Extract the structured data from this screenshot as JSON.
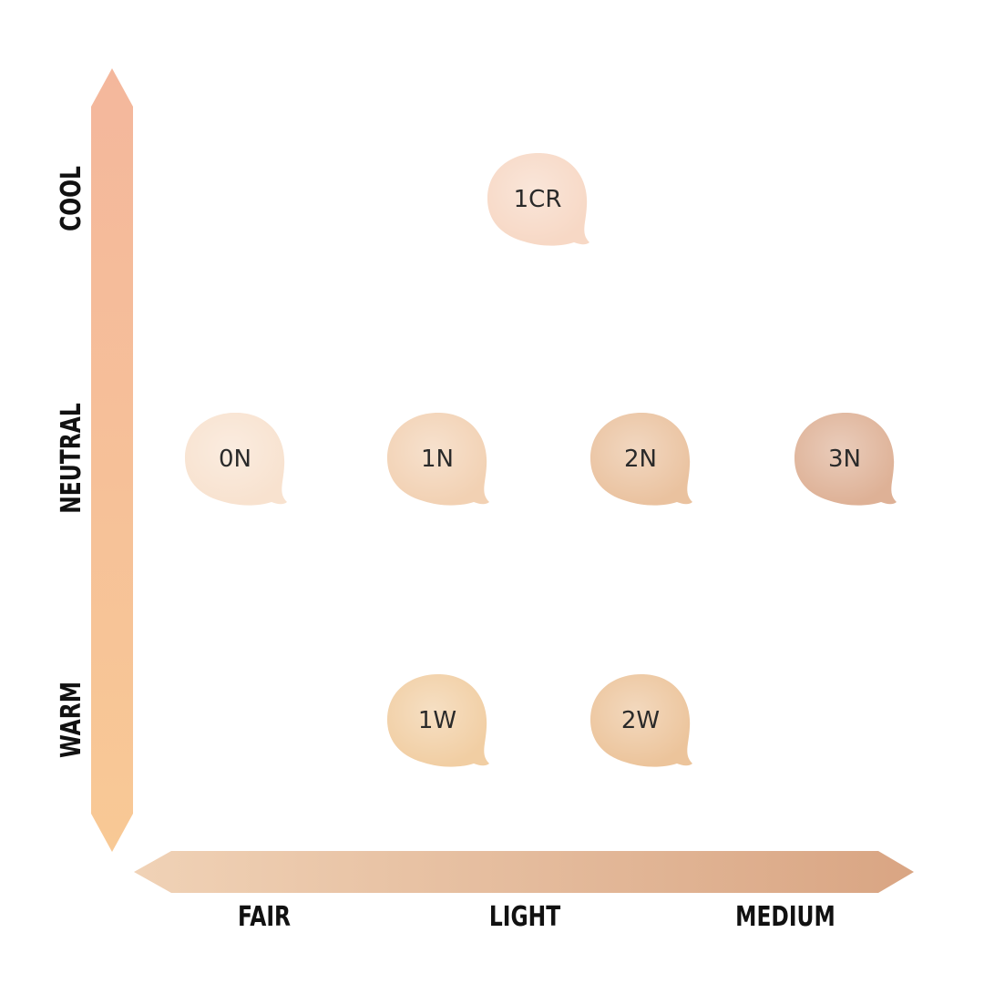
{
  "axes": {
    "vertical": {
      "labels": [
        "COOL",
        "NEUTRAL",
        "WARM"
      ]
    },
    "horizontal": {
      "labels": [
        "FAIR",
        "LIGHT",
        "MEDIUM"
      ]
    }
  },
  "shades": [
    {
      "label": "1CR",
      "color": "#f7d8c5"
    },
    {
      "label": "0N",
      "color": "#f8e2cf"
    },
    {
      "label": "1N",
      "color": "#f2d1b3"
    },
    {
      "label": "2N",
      "color": "#eac29f"
    },
    {
      "label": "3N",
      "color": "#deb196"
    },
    {
      "label": "1W",
      "color": "#f1cea3"
    },
    {
      "label": "2W",
      "color": "#ecc49b"
    }
  ]
}
